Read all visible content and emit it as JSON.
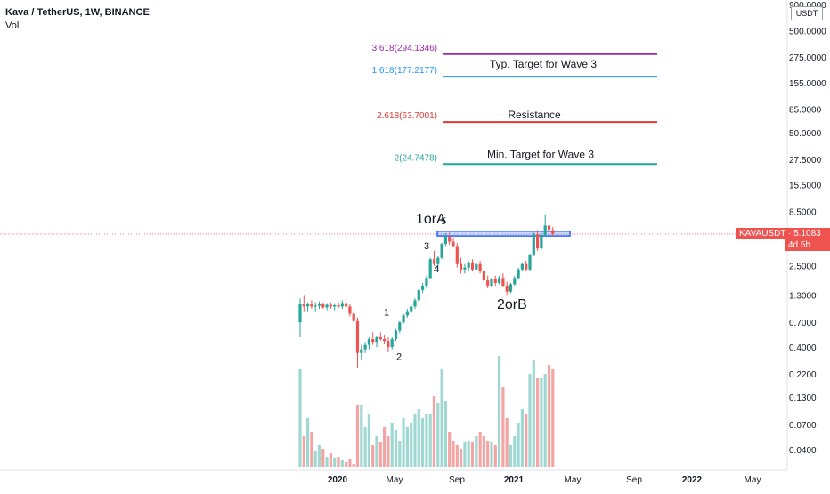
{
  "header": {
    "title": "Kava / TetherUS, 1W, BINANCE",
    "indicator": "Vol"
  },
  "currency_button": "USDT",
  "price_tag": {
    "symbol_price": "KAVAUSDT · 5.1083",
    "countdown": "4d 5h"
  },
  "colors": {
    "up": "#26a69a",
    "down": "#ef5350",
    "vol_up": "#9fd8d2",
    "vol_down": "#f4a4a3",
    "fib_purple": "#9c27b0",
    "fib_blue": "#2196f3",
    "fib_red": "#e53935",
    "fib_green": "#26a69a",
    "zone": "#2962ff"
  },
  "chart_data": {
    "type": "candlestick",
    "price_axis_scale": "log",
    "y_ticks": [
      "900.0000",
      "500.0000",
      "275.0000",
      "155.0000",
      "85.0000",
      "50.0000",
      "27.5000",
      "15.5000",
      "8.5000",
      "5.1083",
      "2.5000",
      "1.3000",
      "0.7000",
      "0.4000",
      "0.2200",
      "0.1300",
      "0.0700",
      "0.0400"
    ],
    "x_ticks": [
      "2020",
      "May",
      "Sep",
      "2021",
      "May",
      "Sep",
      "2022",
      "May"
    ],
    "fib_levels": [
      {
        "label": "3.618(294.1346)",
        "value": 294.1346,
        "color": "#9c27b0"
      },
      {
        "label": "1.618(177.2177)",
        "value": 177.2177,
        "color": "#2196f3"
      },
      {
        "label": "2.618(63.7001)",
        "value": 63.7001,
        "color": "#e53935"
      },
      {
        "label": "2(24.7478)",
        "value": 24.7478,
        "color": "#26a69a"
      }
    ],
    "annotations": [
      "Typ. Target for Wave 3",
      "Resistance",
      "Min. Target for Wave 3",
      "1orA",
      "2orB",
      "1",
      "2",
      "3",
      "4",
      "5"
    ],
    "ohlc": [
      [
        0.7,
        1.2,
        0.5,
        1.05
      ],
      [
        1.05,
        1.3,
        0.9,
        1.0
      ],
      [
        1.0,
        1.1,
        0.9,
        1.05
      ],
      [
        1.05,
        1.15,
        0.95,
        1.0
      ],
      [
        1.0,
        1.1,
        0.9,
        1.02
      ],
      [
        1.02,
        1.12,
        0.95,
        1.06
      ],
      [
        1.06,
        1.1,
        0.95,
        0.98
      ],
      [
        0.98,
        1.08,
        0.92,
        1.04
      ],
      [
        1.04,
        1.1,
        0.95,
        1.0
      ],
      [
        1.0,
        1.08,
        0.92,
        1.03
      ],
      [
        1.03,
        1.1,
        0.96,
        1.0
      ],
      [
        1.0,
        1.15,
        0.95,
        1.08
      ],
      [
        1.08,
        1.2,
        0.98,
        1.0
      ],
      [
        1.0,
        1.05,
        0.8,
        0.85
      ],
      [
        0.85,
        0.9,
        0.7,
        0.72
      ],
      [
        0.72,
        0.78,
        0.25,
        0.35
      ],
      [
        0.35,
        0.42,
        0.3,
        0.38
      ],
      [
        0.38,
        0.45,
        0.35,
        0.42
      ],
      [
        0.42,
        0.5,
        0.38,
        0.48
      ],
      [
        0.48,
        0.56,
        0.42,
        0.45
      ],
      [
        0.45,
        0.52,
        0.4,
        0.5
      ],
      [
        0.5,
        0.56,
        0.46,
        0.48
      ],
      [
        0.48,
        0.53,
        0.43,
        0.46
      ],
      [
        0.46,
        0.5,
        0.36,
        0.4
      ],
      [
        0.4,
        0.5,
        0.38,
        0.48
      ],
      [
        0.48,
        0.6,
        0.46,
        0.58
      ],
      [
        0.58,
        0.72,
        0.55,
        0.7
      ],
      [
        0.7,
        0.85,
        0.68,
        0.82
      ],
      [
        0.82,
        0.95,
        0.78,
        0.9
      ],
      [
        0.9,
        1.05,
        0.85,
        1.0
      ],
      [
        1.0,
        1.2,
        0.95,
        1.15
      ],
      [
        1.15,
        1.5,
        1.1,
        1.45
      ],
      [
        1.45,
        1.7,
        1.35,
        1.6
      ],
      [
        1.6,
        2.0,
        1.5,
        1.9
      ],
      [
        1.9,
        3.0,
        1.85,
        2.9
      ],
      [
        2.9,
        3.5,
        2.5,
        2.6
      ],
      [
        2.6,
        3.1,
        2.3,
        3.0
      ],
      [
        3.0,
        4.2,
        2.9,
        4.1
      ],
      [
        4.1,
        5.2,
        3.9,
        4.8
      ],
      [
        4.8,
        5.3,
        4.0,
        4.3
      ],
      [
        4.3,
        4.7,
        3.8,
        3.9
      ],
      [
        3.9,
        4.2,
        2.4,
        2.6
      ],
      [
        2.6,
        3.0,
        2.1,
        2.3
      ],
      [
        2.3,
        2.6,
        2.1,
        2.4
      ],
      [
        2.4,
        2.8,
        2.2,
        2.7
      ],
      [
        2.7,
        2.9,
        2.2,
        2.3
      ],
      [
        2.3,
        2.7,
        2.2,
        2.6
      ],
      [
        2.6,
        2.8,
        2.1,
        2.2
      ],
      [
        2.2,
        2.4,
        1.7,
        1.8
      ],
      [
        1.8,
        2.0,
        1.5,
        1.6
      ],
      [
        1.6,
        1.9,
        1.55,
        1.85
      ],
      [
        1.85,
        2.0,
        1.6,
        1.7
      ],
      [
        1.7,
        2.0,
        1.65,
        1.9
      ],
      [
        1.9,
        2.1,
        1.55,
        1.6
      ],
      [
        1.6,
        1.75,
        1.3,
        1.4
      ],
      [
        1.4,
        1.7,
        1.35,
        1.65
      ],
      [
        1.65,
        2.0,
        1.6,
        1.9
      ],
      [
        1.9,
        2.4,
        1.85,
        2.3
      ],
      [
        2.3,
        2.7,
        2.2,
        2.6
      ],
      [
        2.6,
        2.8,
        2.2,
        2.3
      ],
      [
        2.3,
        3.3,
        2.2,
        3.2
      ],
      [
        3.2,
        5.3,
        3.1,
        5.1
      ],
      [
        5.1,
        5.6,
        3.5,
        3.7
      ],
      [
        3.7,
        5.2,
        3.6,
        5.0
      ],
      [
        5.0,
        8.0,
        4.8,
        6.2
      ],
      [
        6.2,
        7.8,
        5.2,
        5.6
      ],
      [
        5.6,
        6.0,
        4.9,
        5.1
      ]
    ],
    "volume": [
      110,
      35,
      55,
      40,
      18,
      25,
      20,
      12,
      16,
      10,
      12,
      8,
      6,
      9,
      4,
      70,
      70,
      45,
      60,
      25,
      35,
      28,
      45,
      35,
      50,
      42,
      30,
      55,
      45,
      50,
      60,
      65,
      55,
      60,
      60,
      80,
      72,
      110,
      75,
      40,
      30,
      25,
      20,
      28,
      30,
      28,
      35,
      40,
      35,
      30,
      28,
      25,
      125,
      90,
      55,
      25,
      35,
      50,
      65,
      60,
      105,
      120,
      100,
      100,
      105,
      115,
      110
    ]
  }
}
